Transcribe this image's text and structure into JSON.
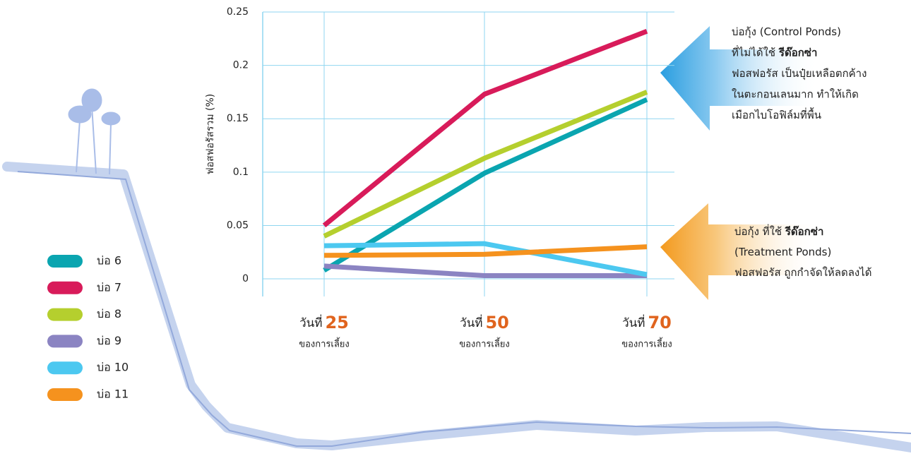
{
  "chart_data": {
    "type": "line",
    "y_label": "ฟอสฟอรัสรวม (%)",
    "categories": [
      "25",
      "50",
      "70"
    ],
    "x_prefix": "วันที่",
    "x_suffix": "ของการเลี้ยง",
    "ylim": [
      -0.0165,
      0.25
    ],
    "yticks": [
      0,
      0.05,
      0.1,
      0.15,
      0.2,
      0.25
    ],
    "grid": true,
    "series": [
      {
        "name": "บ่อ 6",
        "color": "#0aa5b0",
        "values": [
          0.008,
          0.099,
          0.168
        ]
      },
      {
        "name": "บ่อ 7",
        "color": "#d81b5a",
        "values": [
          0.05,
          0.173,
          0.232
        ]
      },
      {
        "name": "บ่อ 8",
        "color": "#b5cf2e",
        "values": [
          0.04,
          0.113,
          0.175
        ]
      },
      {
        "name": "บ่อ 9",
        "color": "#8b84c2",
        "values": [
          0.012,
          0.003,
          0.003
        ]
      },
      {
        "name": "บ่อ 10",
        "color": "#4cc8f0",
        "values": [
          0.031,
          0.033,
          0.004
        ]
      },
      {
        "name": "บ่อ 11",
        "color": "#f5921e",
        "values": [
          0.022,
          0.023,
          0.03
        ]
      }
    ],
    "annotations": [
      {
        "lines": [
          [
            "บ่อกุ้ง (Control Ponds)"
          ],
          [
            "ที่ไม่ได้ใช้ ",
            {
              "bold": "รีด๊อกซ่า"
            }
          ],
          [
            "ฟอสฟอรัส เป็นปุ๋ยเหลือตกค้าง"
          ],
          [
            "ในตะกอนเลนมาก ทำให้เกิด"
          ],
          [
            "เมือกไบโอฟิล์มที่พื้น"
          ]
        ]
      },
      {
        "lines": [
          [
            "บ่อกุ้ง ที่ใช้ ",
            {
              "bold": "รีด๊อกซ่า"
            }
          ],
          [
            "(Treatment Ponds)"
          ],
          [
            "ฟอสฟอรัส ถูกกำจัดให้ลดลงได้"
          ]
        ]
      }
    ]
  }
}
